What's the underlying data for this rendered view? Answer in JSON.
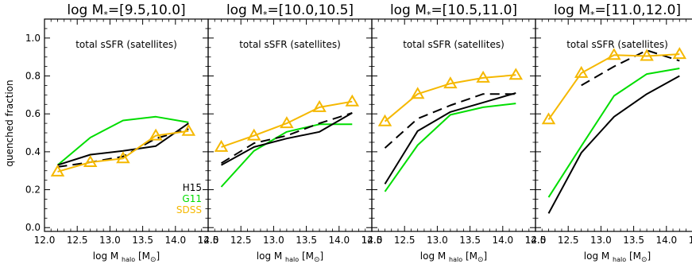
{
  "chart_data": {
    "type": "line",
    "ylabel": "quenched fraction",
    "xlabel_main": "log M",
    "xlabel_sub": "halo",
    "xlabel_unit": "[M",
    "xlabel_unit_end": "]",
    "xlim": [
      12.0,
      14.5
    ],
    "ylim": [
      -0.02,
      1.1
    ],
    "xticks": [
      "12.0",
      "12.5",
      "13.0",
      "13.5",
      "14.0",
      "14.5"
    ],
    "yticks": [
      "0.0",
      "0.2",
      "0.4",
      "0.6",
      "0.8",
      "1.0"
    ],
    "legend": [
      {
        "label": "H15",
        "color": "#000000"
      },
      {
        "label": "G11",
        "color": "#00dd00"
      },
      {
        "label": "SDSS",
        "color": "#f5b800"
      }
    ],
    "colors": {
      "H15": "#000000",
      "G11": "#00dd00",
      "SDSS": "#f5b800"
    },
    "panels": [
      {
        "title_prefix": "log M",
        "title_sub": "*",
        "title_range": "=[9.5,10.0]",
        "annotation": "total sSFR (satellites)",
        "series": [
          {
            "name": "G11",
            "style": "solid",
            "x": [
              12.2,
              12.7,
              13.2,
              13.7,
              14.2
            ],
            "y": [
              0.33,
              0.475,
              0.565,
              0.585,
              0.555
            ]
          },
          {
            "name": "H15",
            "style": "solid",
            "x": [
              12.2,
              12.7,
              13.2,
              13.7,
              14.2
            ],
            "y": [
              0.33,
              0.385,
              0.405,
              0.43,
              0.55
            ]
          },
          {
            "name": "H15-dashed",
            "style": "dashed",
            "x": [
              12.2,
              12.7,
              13.2,
              13.7,
              14.2
            ],
            "y": [
              0.32,
              0.345,
              0.375,
              0.47,
              0.52
            ]
          },
          {
            "name": "SDSS",
            "style": "triangles",
            "x": [
              12.2,
              12.7,
              13.2,
              13.7,
              14.2
            ],
            "y": [
              0.295,
              0.345,
              0.365,
              0.485,
              0.51
            ]
          }
        ]
      },
      {
        "title_prefix": "log M",
        "title_sub": "*",
        "title_range": "=[10.0,10.5]",
        "annotation": "total sSFR (satellites)",
        "series": [
          {
            "name": "G11",
            "style": "solid",
            "x": [
              12.2,
              12.7,
              13.2,
              13.7,
              14.2
            ],
            "y": [
              0.215,
              0.405,
              0.505,
              0.545,
              0.545
            ]
          },
          {
            "name": "H15",
            "style": "solid",
            "x": [
              12.2,
              12.7,
              13.2,
              13.7,
              14.2
            ],
            "y": [
              0.33,
              0.425,
              0.47,
              0.505,
              0.605
            ]
          },
          {
            "name": "H15-dashed",
            "style": "dashed",
            "x": [
              12.2,
              12.7,
              13.2,
              13.7,
              14.2
            ],
            "y": [
              0.34,
              0.445,
              0.485,
              0.55,
              0.605
            ]
          },
          {
            "name": "SDSS",
            "style": "triangles",
            "x": [
              12.2,
              12.7,
              13.2,
              13.7,
              14.2
            ],
            "y": [
              0.425,
              0.485,
              0.55,
              0.635,
              0.665
            ]
          }
        ]
      },
      {
        "title_prefix": "log M",
        "title_sub": "*",
        "title_range": "=[10.5,11.0]",
        "annotation": "total sSFR (satellites)",
        "series": [
          {
            "name": "G11",
            "style": "solid",
            "x": [
              12.2,
              12.7,
              13.2,
              13.7,
              14.2
            ],
            "y": [
              0.19,
              0.435,
              0.595,
              0.635,
              0.655
            ]
          },
          {
            "name": "H15",
            "style": "solid",
            "x": [
              12.2,
              12.7,
              13.2,
              13.7,
              14.2
            ],
            "y": [
              0.23,
              0.51,
              0.61,
              0.66,
              0.71
            ]
          },
          {
            "name": "H15-dashed",
            "style": "dashed",
            "x": [
              12.2,
              12.7,
              13.2,
              13.7,
              14.2
            ],
            "y": [
              0.42,
              0.575,
              0.645,
              0.705,
              0.705
            ]
          },
          {
            "name": "SDSS",
            "style": "triangles",
            "x": [
              12.2,
              12.7,
              13.2,
              13.7,
              14.2
            ],
            "y": [
              0.56,
              0.705,
              0.76,
              0.79,
              0.805
            ]
          }
        ]
      },
      {
        "title_prefix": "log M",
        "title_sub": "*",
        "title_range": "=[11.0,12.0]",
        "annotation": "total sSFR (satellites)",
        "series": [
          {
            "name": "G11",
            "style": "solid",
            "x": [
              12.2,
              12.7,
              13.2,
              13.7,
              14.2
            ],
            "y": [
              0.16,
              0.43,
              0.695,
              0.81,
              0.84
            ]
          },
          {
            "name": "H15",
            "style": "solid",
            "x": [
              12.2,
              12.7,
              13.2,
              13.7,
              14.2
            ],
            "y": [
              0.075,
              0.395,
              0.585,
              0.705,
              0.8
            ]
          },
          {
            "name": "H15-dashed",
            "style": "dashed",
            "x": [
              12.7,
              13.2,
              13.7,
              14.2
            ],
            "y": [
              0.75,
              0.85,
              0.935,
              0.88
            ]
          },
          {
            "name": "SDSS",
            "style": "triangles",
            "x": [
              12.2,
              12.7,
              13.2,
              13.7,
              14.2
            ],
            "y": [
              0.57,
              0.815,
              0.91,
              0.905,
              0.915
            ]
          }
        ]
      }
    ]
  }
}
